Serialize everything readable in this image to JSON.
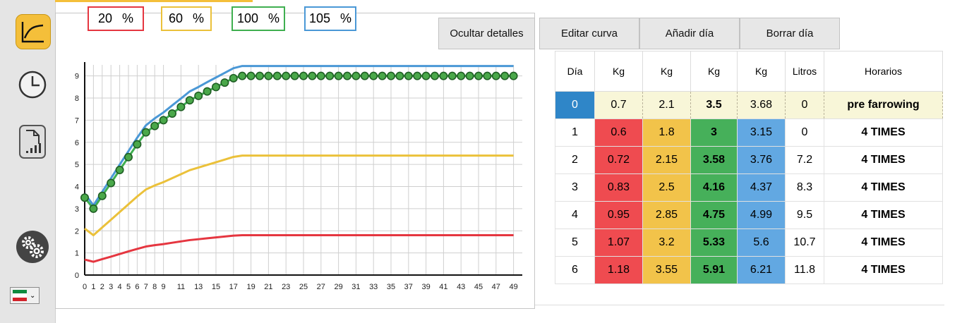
{
  "sidebar": {
    "items": [
      {
        "icon": "line-chart-icon",
        "active": true
      },
      {
        "icon": "clock-icon",
        "active": false
      },
      {
        "icon": "report-file-icon",
        "active": false
      },
      {
        "icon": "gear-icon",
        "active": false
      }
    ],
    "language_flag": "flag-icon",
    "language_flag_colors": [
      "#0f8a3f",
      "#ffffff",
      "#d2222a"
    ]
  },
  "percent_buttons": [
    {
      "value": "20",
      "unit": "%",
      "color": "#e53640"
    },
    {
      "value": "60",
      "unit": "%",
      "color": "#ebc13a"
    },
    {
      "value": "100",
      "unit": "%",
      "color": "#3faf50"
    },
    {
      "value": "105",
      "unit": "%",
      "color": "#4a98d6"
    }
  ],
  "toolbar": {
    "hide_details": "Ocultar detalles",
    "edit_curve": "Editar curva",
    "add_day": "Añadir día",
    "delete_day": "Borrar día"
  },
  "table": {
    "headers": [
      "Día",
      "Kg",
      "Kg",
      "Kg",
      "Kg",
      "Litros",
      "Horarios"
    ],
    "rows": [
      {
        "day": "0",
        "kg20": "0.7",
        "kg60": "2.1",
        "kg100": "3.5",
        "kg105": "3.68",
        "litros": "0",
        "horario": "pre farrowing",
        "selected": true
      },
      {
        "day": "1",
        "kg20": "0.6",
        "kg60": "1.8",
        "kg100": "3",
        "kg105": "3.15",
        "litros": "0",
        "horario": "4 TIMES",
        "selected": false
      },
      {
        "day": "2",
        "kg20": "0.72",
        "kg60": "2.15",
        "kg100": "3.58",
        "kg105": "3.76",
        "litros": "7.2",
        "horario": "4 TIMES",
        "selected": false
      },
      {
        "day": "3",
        "kg20": "0.83",
        "kg60": "2.5",
        "kg100": "4.16",
        "kg105": "4.37",
        "litros": "8.3",
        "horario": "4 TIMES",
        "selected": false
      },
      {
        "day": "4",
        "kg20": "0.95",
        "kg60": "2.85",
        "kg100": "4.75",
        "kg105": "4.99",
        "litros": "9.5",
        "horario": "4 TIMES",
        "selected": false
      },
      {
        "day": "5",
        "kg20": "1.07",
        "kg60": "3.2",
        "kg100": "5.33",
        "kg105": "5.6",
        "litros": "10.7",
        "horario": "4 TIMES",
        "selected": false
      },
      {
        "day": "6",
        "kg20": "1.18",
        "kg60": "3.55",
        "kg100": "5.91",
        "kg105": "6.21",
        "litros": "11.8",
        "horario": "4 TIMES",
        "selected": false
      }
    ]
  },
  "colors": {
    "accent": "#f4bf3a",
    "red": "#ef4b50",
    "yellow": "#f2c34a",
    "green": "#46b05a",
    "blue": "#62a8e2",
    "selected_day": "#2f86c8",
    "selected_row_bg": "#f8f6d8"
  },
  "chart_data": {
    "type": "line",
    "xlim": [
      0,
      50
    ],
    "ylim": [
      0,
      9.5
    ],
    "x_ticks": [
      0,
      1,
      2,
      3,
      4,
      5,
      6,
      7,
      8,
      9,
      11,
      13,
      15,
      17,
      19,
      21,
      23,
      25,
      27,
      29,
      31,
      33,
      35,
      37,
      39,
      41,
      43,
      45,
      47,
      49
    ],
    "y_ticks": [
      0,
      1,
      2,
      3,
      4,
      5,
      6,
      7,
      8,
      9
    ],
    "grid": true,
    "x": [
      0,
      1,
      2,
      3,
      4,
      5,
      6,
      7,
      8,
      9,
      10,
      11,
      12,
      13,
      14,
      15,
      16,
      17,
      18,
      19,
      20,
      21,
      22,
      23,
      24,
      25,
      26,
      27,
      28,
      29,
      30,
      31,
      32,
      33,
      34,
      35,
      36,
      37,
      38,
      39,
      40,
      41,
      42,
      43,
      44,
      45,
      46,
      47,
      48,
      49
    ],
    "series": [
      {
        "color": "#e53640",
        "values": [
          0.7,
          0.6,
          0.72,
          0.83,
          0.95,
          1.07,
          1.18,
          1.29,
          1.35,
          1.4,
          1.46,
          1.52,
          1.58,
          1.62,
          1.66,
          1.7,
          1.74,
          1.78,
          1.8,
          1.8,
          1.8,
          1.8,
          1.8,
          1.8,
          1.8,
          1.8,
          1.8,
          1.8,
          1.8,
          1.8,
          1.8,
          1.8,
          1.8,
          1.8,
          1.8,
          1.8,
          1.8,
          1.8,
          1.8,
          1.8,
          1.8,
          1.8,
          1.8,
          1.8,
          1.8,
          1.8,
          1.8,
          1.8,
          1.8,
          1.8
        ]
      },
      {
        "color": "#ebc13a",
        "values": [
          2.1,
          1.8,
          2.15,
          2.5,
          2.85,
          3.2,
          3.55,
          3.87,
          4.05,
          4.2,
          4.38,
          4.56,
          4.74,
          4.86,
          4.98,
          5.1,
          5.22,
          5.34,
          5.4,
          5.4,
          5.4,
          5.4,
          5.4,
          5.4,
          5.4,
          5.4,
          5.4,
          5.4,
          5.4,
          5.4,
          5.4,
          5.4,
          5.4,
          5.4,
          5.4,
          5.4,
          5.4,
          5.4,
          5.4,
          5.4,
          5.4,
          5.4,
          5.4,
          5.4,
          5.4,
          5.4,
          5.4,
          5.4,
          5.4,
          5.4
        ]
      },
      {
        "color": "#3faf50",
        "values": [
          3.5,
          3.0,
          3.58,
          4.16,
          4.75,
          5.33,
          5.91,
          6.45,
          6.74,
          7.0,
          7.3,
          7.6,
          7.9,
          8.1,
          8.3,
          8.5,
          8.7,
          8.9,
          9.0,
          9.0,
          9.0,
          9.0,
          9.0,
          9.0,
          9.0,
          9.0,
          9.0,
          9.0,
          9.0,
          9.0,
          9.0,
          9.0,
          9.0,
          9.0,
          9.0,
          9.0,
          9.0,
          9.0,
          9.0,
          9.0,
          9.0,
          9.0,
          9.0,
          9.0,
          9.0,
          9.0,
          9.0,
          9.0,
          9.0,
          9.0
        ]
      },
      {
        "color": "#4a98d6",
        "values": [
          3.68,
          3.15,
          3.76,
          4.37,
          4.99,
          5.6,
          6.21,
          6.77,
          7.08,
          7.35,
          7.67,
          7.98,
          8.3,
          8.5,
          8.72,
          8.93,
          9.14,
          9.35,
          9.45,
          9.45,
          9.45,
          9.45,
          9.45,
          9.45,
          9.45,
          9.45,
          9.45,
          9.45,
          9.45,
          9.45,
          9.45,
          9.45,
          9.45,
          9.45,
          9.45,
          9.45,
          9.45,
          9.45,
          9.45,
          9.45,
          9.45,
          9.45,
          9.45,
          9.45,
          9.45,
          9.45,
          9.45,
          9.45,
          9.45,
          9.45
        ]
      }
    ]
  }
}
